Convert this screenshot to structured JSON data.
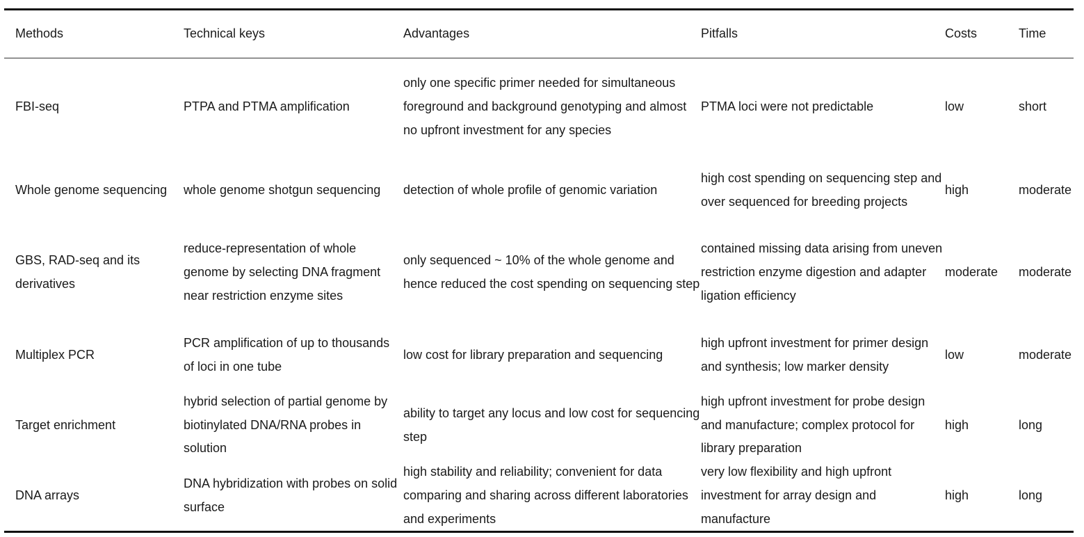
{
  "table": {
    "headers": [
      "Methods",
      "Technical keys",
      "Advantages",
      "Pitfalls",
      "Costs",
      "Time"
    ],
    "rows": [
      {
        "method": "FBI-seq",
        "technical_keys": "PTPA and PTMA amplification",
        "advantages": "only one specific primer needed for simultaneous foreground and background genotyping and almost no upfront investment for any species",
        "pitfalls": "PTMA loci were not predictable",
        "costs": "low",
        "time": "short"
      },
      {
        "method": "Whole genome sequencing",
        "technical_keys": "whole genome shotgun sequencing",
        "advantages": "detection of whole profile of genomic variation",
        "pitfalls": "high cost spending on sequencing step and over sequenced for breeding projects",
        "costs": "high",
        "time": "moderate"
      },
      {
        "method": "GBS, RAD-seq and its derivatives",
        "technical_keys": "reduce-representation of whole genome by selecting DNA fragment near restriction enzyme sites",
        "advantages": "only sequenced ~ 10% of the whole genome and hence reduced the cost spending on sequencing step",
        "pitfalls": "contained missing data arising from uneven restriction enzyme digestion and adapter ligation efficiency",
        "costs": "moderate",
        "time": "moderate"
      },
      {
        "method": "Multiplex PCR",
        "technical_keys": "PCR amplification of up to thousands of loci in one tube",
        "advantages": "low cost for library preparation and sequencing",
        "pitfalls": "high upfront investment for primer design and synthesis; low marker density",
        "costs": "low",
        "time": "moderate"
      },
      {
        "method": "Target enrichment",
        "technical_keys": "hybrid selection of partial genome by biotinylated DNA/RNA probes in solution",
        "advantages": "ability to target any locus and low cost for sequencing step",
        "pitfalls": "high upfront investment for probe design and manufacture; complex protocol for library preparation",
        "costs": "high",
        "time": "long"
      },
      {
        "method": "DNA arrays",
        "technical_keys": "DNA hybridization with probes on solid surface",
        "advantages": "high stability and reliability; convenient for data comparing and sharing across different laboratories and experiments",
        "pitfalls": "very low flexibility and high upfront investment for array design and manufacture",
        "costs": "high",
        "time": "long"
      }
    ]
  }
}
